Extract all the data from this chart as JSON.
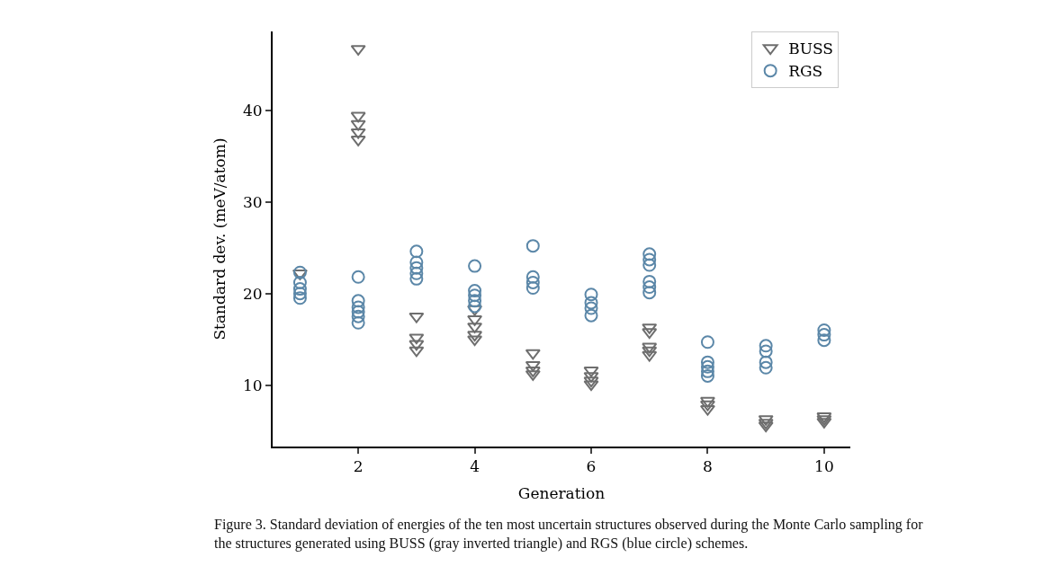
{
  "chart_data": {
    "type": "scatter",
    "xlabel": "Generation",
    "ylabel": "Standard dev. (meV/atom)",
    "xlim": [
      0.53,
      10.45
    ],
    "xticks": [
      2,
      4,
      6,
      8,
      10
    ],
    "ylim": [
      3.3,
      48.6
    ],
    "yticks": [
      10,
      20,
      30,
      40
    ],
    "legend": "top right",
    "annotations": [
      "Figure 3. Standard deviation of energies of the ten most uncertain structures observed during the Monte Carlo sampling for the structures generated using BUSS (gray inverted triangle) and RGS (blue circle) schemes."
    ],
    "series": [
      {
        "name": "BUSS",
        "color": "#6e6e6e",
        "marker": "triangle",
        "x": [
          1,
          2,
          2,
          2,
          2,
          2,
          3,
          3,
          3,
          3,
          4,
          4,
          4,
          4,
          4,
          5,
          5,
          5,
          5,
          6,
          6,
          6,
          6,
          7,
          7,
          7,
          7,
          7,
          8,
          8,
          8,
          9,
          9,
          9,
          10,
          10,
          10
        ],
        "values": [
          22.2,
          46.7,
          39.4,
          38.5,
          37.6,
          36.8,
          17.5,
          15.2,
          14.5,
          13.8,
          18.3,
          17.2,
          16.4,
          15.5,
          15,
          13.5,
          12.2,
          11.6,
          11.2,
          11.6,
          11,
          10.5,
          10.1,
          16.3,
          15.8,
          14.2,
          13.8,
          13.3,
          8.3,
          7.9,
          7.4,
          6.3,
          5.9,
          5.6,
          6.6,
          6.3,
          6
        ]
      },
      {
        "name": "RGS",
        "color": "#5b87a8",
        "marker": "circle",
        "x": [
          1,
          1,
          1,
          1,
          1,
          2,
          2,
          2,
          2,
          2,
          2,
          3,
          3,
          3,
          3,
          3,
          4,
          4,
          4,
          4,
          4,
          5,
          5,
          5,
          5,
          6,
          6,
          6,
          6,
          7,
          7,
          7,
          7,
          7,
          7,
          8,
          8,
          8,
          8,
          8,
          9,
          9,
          9,
          9,
          10,
          10,
          10
        ],
        "values": [
          22.3,
          21.2,
          20.5,
          20,
          19.5,
          21.8,
          19.2,
          18.5,
          18,
          17.5,
          16.8,
          24.6,
          23.4,
          22.8,
          22.2,
          21.6,
          23,
          20.3,
          19.8,
          19.2,
          18.6,
          25.2,
          21.8,
          21.2,
          20.6,
          19.9,
          19,
          18.4,
          17.6,
          24.3,
          23.7,
          23.1,
          21.3,
          20.7,
          20.1,
          14.7,
          12.5,
          12,
          11.5,
          11,
          14.3,
          13.7,
          12.5,
          11.9,
          16,
          15.5,
          14.9
        ]
      }
    ]
  }
}
